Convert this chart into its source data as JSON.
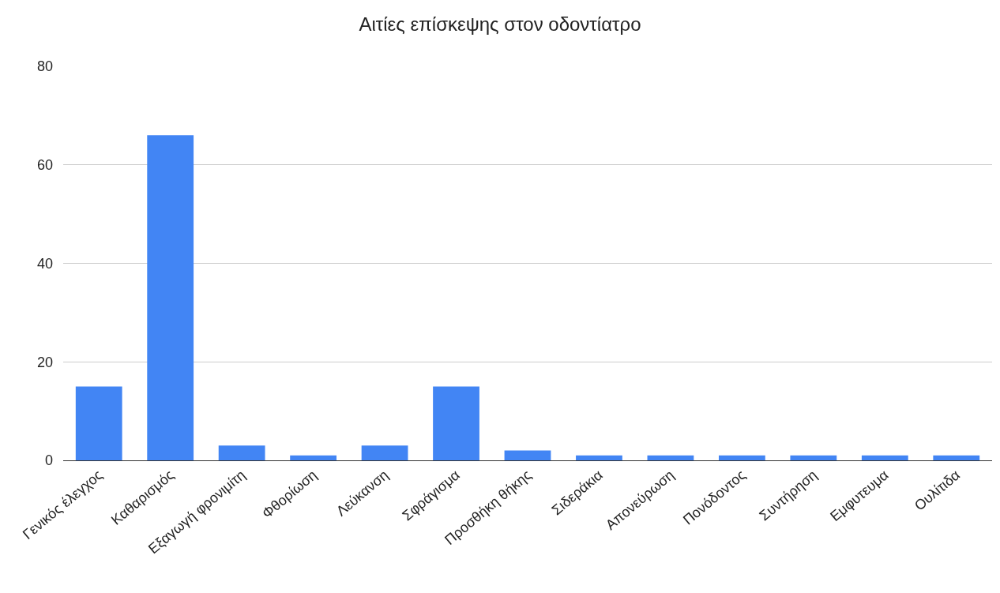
{
  "chart_data": {
    "type": "bar",
    "title": "Αιτίες επίσκεψης στον οδοντίατρο",
    "categories": [
      "Γενικός έλεγχος",
      "Καθαρισμός",
      "Εξαγωγή φρονιμίτη",
      "Φθορίωση",
      "Λεύκανση",
      "Σφράγισμα",
      "Προσθήκη θήκης",
      "Σιδεράκια",
      "Απονεύρωση",
      "Πονόδοντος",
      "Συντήρηση",
      "Εμφυτευμα",
      "Ουλίτιδα"
    ],
    "values": [
      15,
      66,
      3,
      1,
      3,
      15,
      2,
      1,
      1,
      1,
      1,
      1,
      1
    ],
    "color": "#4285f4",
    "ylim": [
      0,
      80
    ],
    "yticks": [
      0,
      20,
      40,
      60,
      80
    ],
    "grid": "y"
  }
}
